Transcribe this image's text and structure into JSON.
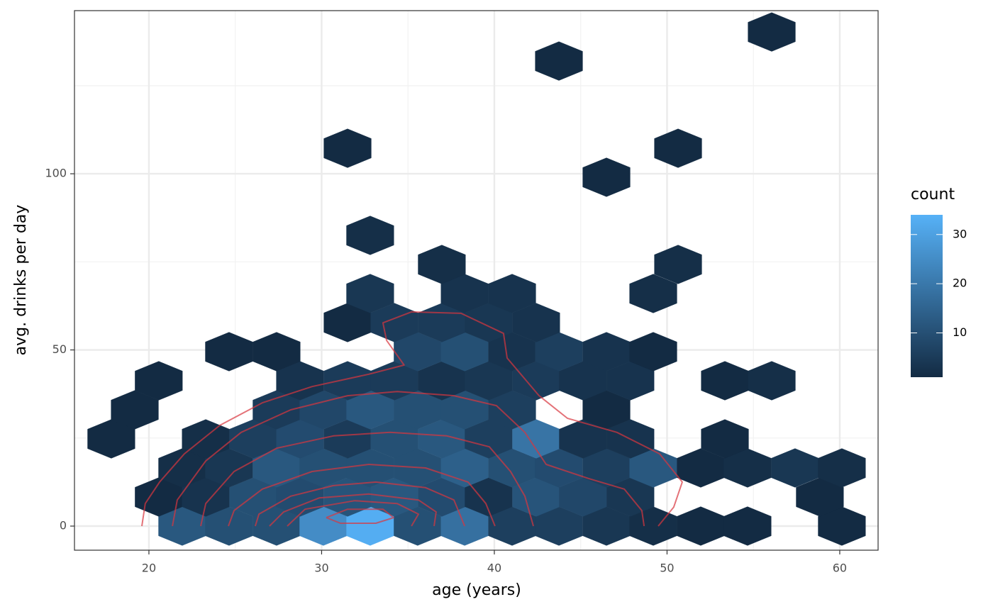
{
  "chart_data": {
    "type": "hexbin",
    "x_label": "age (years)",
    "y_label": "avg. drinks per day",
    "xlim": [
      15.69,
      62.22
    ],
    "ylim": [
      -6.84,
      146.3
    ],
    "xticks": [
      20,
      30,
      40,
      50,
      60
    ],
    "yticks": [
      0,
      50,
      100
    ],
    "xminor": [
      25,
      35,
      45,
      55
    ],
    "yminor": [
      25,
      75,
      125
    ],
    "grid": true,
    "x": [
      21.93,
      24.64,
      27.39,
      30.1,
      32.81,
      35.56,
      38.28,
      41.03,
      43.74,
      46.49,
      49.2,
      51.95,
      54.66,
      60.12,
      20.57,
      23.29,
      26.04,
      28.75,
      31.5,
      34.21,
      36.96,
      39.67,
      42.42,
      45.13,
      47.88,
      58.85,
      21.93,
      24.64,
      27.39,
      30.1,
      32.81,
      35.56,
      38.28,
      41.03,
      43.74,
      46.49,
      49.2,
      51.95,
      54.66,
      57.41,
      60.12,
      17.82,
      23.29,
      26.04,
      28.75,
      31.5,
      34.21,
      36.96,
      39.67,
      42.42,
      45.13,
      47.88,
      53.35,
      19.18,
      27.39,
      30.1,
      32.81,
      35.56,
      38.28,
      41.03,
      46.49,
      20.57,
      28.75,
      31.5,
      34.21,
      36.96,
      39.67,
      42.42,
      45.13,
      47.88,
      53.35,
      56.06,
      24.64,
      27.39,
      35.56,
      38.28,
      41.03,
      43.74,
      46.49,
      49.2,
      31.5,
      34.21,
      36.96,
      39.67,
      42.42,
      32.81,
      38.28,
      41.03,
      49.2,
      36.96,
      50.64,
      32.81,
      46.49,
      31.5,
      50.64,
      43.74,
      56.06
    ],
    "y": [
      0,
      0,
      0,
      0,
      0,
      0,
      0,
      0,
      0,
      0,
      0,
      0,
      0,
      0,
      8.25,
      8.25,
      8.25,
      8.25,
      8.25,
      8.25,
      8.25,
      8.25,
      8.25,
      8.25,
      8.25,
      8.25,
      16.5,
      16.5,
      16.5,
      16.5,
      16.5,
      16.5,
      16.5,
      16.5,
      16.5,
      16.5,
      16.5,
      16.5,
      16.5,
      16.5,
      16.5,
      24.75,
      24.75,
      24.75,
      24.75,
      24.75,
      24.75,
      24.75,
      24.75,
      24.75,
      24.75,
      24.75,
      24.75,
      33,
      33,
      33,
      33,
      33,
      33,
      33,
      33,
      41.25,
      41.25,
      41.25,
      41.25,
      41.25,
      41.25,
      41.25,
      41.25,
      41.25,
      41.25,
      41.25,
      49.5,
      49.5,
      49.5,
      49.5,
      49.5,
      49.5,
      49.5,
      49.5,
      57.75,
      57.75,
      57.75,
      57.75,
      57.75,
      66,
      66,
      66,
      66,
      74.25,
      74.25,
      82.5,
      99,
      107.25,
      107.25,
      132,
      140.25
    ],
    "values": [
      12,
      10,
      10,
      25,
      33,
      10,
      18,
      6,
      6,
      4,
      2,
      1,
      1,
      1,
      1,
      3,
      10,
      9,
      11,
      12,
      9,
      3,
      11,
      8,
      4,
      1,
      2,
      4,
      12,
      10,
      10,
      10,
      14,
      10,
      9,
      6,
      12,
      1,
      2,
      4,
      2,
      1,
      2,
      6,
      9,
      5,
      10,
      12,
      6,
      19,
      3,
      3,
      1,
      1,
      5,
      8,
      12,
      10,
      10,
      6,
      1,
      1,
      3,
      5,
      5,
      3,
      4,
      5,
      3,
      3,
      1,
      2,
      1,
      1,
      8,
      10,
      3,
      6,
      3,
      1,
      1,
      5,
      5,
      4,
      3,
      4,
      3,
      3,
      2,
      2,
      2,
      2,
      1,
      1,
      1,
      1,
      1
    ],
    "colorbar": {
      "title": "count",
      "lim": [
        1,
        34
      ],
      "ticks": [
        10,
        20,
        30
      ],
      "low": "#132B43",
      "high": "#56B1F7"
    },
    "contour_color": "#d9363e",
    "contours": [
      {
        "x": [
          19.59,
          19.79,
          20.62,
          22.05,
          24.11,
          26.57,
          29.45,
          32.73,
          34.78,
          33.76,
          33.55,
          35.2,
          38.07,
          40.53,
          40.74,
          42.59,
          44.23,
          47.1,
          49.57,
          50.88,
          50.39,
          49.49
        ],
        "y": [
          0,
          6.4,
          12.5,
          20.5,
          28.6,
          35.0,
          39.6,
          43.1,
          45.7,
          52.7,
          57.7,
          60.8,
          60.4,
          54.7,
          47.7,
          37.0,
          30.6,
          26.6,
          20.5,
          12.5,
          5.4,
          0
        ]
      },
      {
        "x": [
          21.36,
          21.64,
          23.29,
          25.34,
          28.21,
          31.5,
          34.37,
          37.66,
          40.12,
          41.77,
          43.0,
          45.46,
          47.52,
          48.54,
          48.67
        ],
        "y": [
          0,
          7.4,
          18.5,
          26.6,
          33.0,
          37.0,
          38.2,
          37.0,
          34.2,
          26.6,
          17.5,
          13.5,
          10.5,
          4.4,
          0
        ]
      },
      {
        "x": [
          23.0,
          23.29,
          24.93,
          27.39,
          30.68,
          33.96,
          37.25,
          39.71,
          40.94,
          41.77,
          42.26
        ],
        "y": [
          0,
          6.4,
          15.5,
          22.1,
          25.6,
          26.6,
          25.6,
          22.5,
          15.5,
          8.5,
          0
        ]
      },
      {
        "x": [
          24.6,
          24.93,
          26.57,
          29.45,
          32.73,
          36.02,
          38.48,
          39.51,
          40.04
        ],
        "y": [
          0,
          4.4,
          10.5,
          15.5,
          17.5,
          16.5,
          12.5,
          6.4,
          0
        ]
      },
      {
        "x": [
          26.16,
          26.37,
          28.21,
          30.68,
          33.14,
          36.02,
          37.66,
          38.28
        ],
        "y": [
          0,
          3.4,
          8.5,
          11.5,
          12.5,
          10.9,
          7.4,
          0
        ]
      },
      {
        "x": [
          26.98,
          27.8,
          29.86,
          32.73,
          35.61,
          36.63,
          36.51
        ],
        "y": [
          0,
          4.0,
          8.0,
          9.1,
          7.4,
          4.0,
          0
        ]
      },
      {
        "x": [
          28.01,
          29.04,
          31.91,
          34.37,
          35.61,
          35.2
        ],
        "y": [
          0,
          4.8,
          7.2,
          6.4,
          3.4,
          0
        ]
      },
      {
        "x": [
          30.27,
          31.5,
          33.55,
          34.17,
          33.14,
          31.09,
          30.27
        ],
        "y": [
          2.4,
          4.8,
          4.8,
          2.4,
          0.8,
          0.8,
          2.4
        ]
      }
    ]
  }
}
